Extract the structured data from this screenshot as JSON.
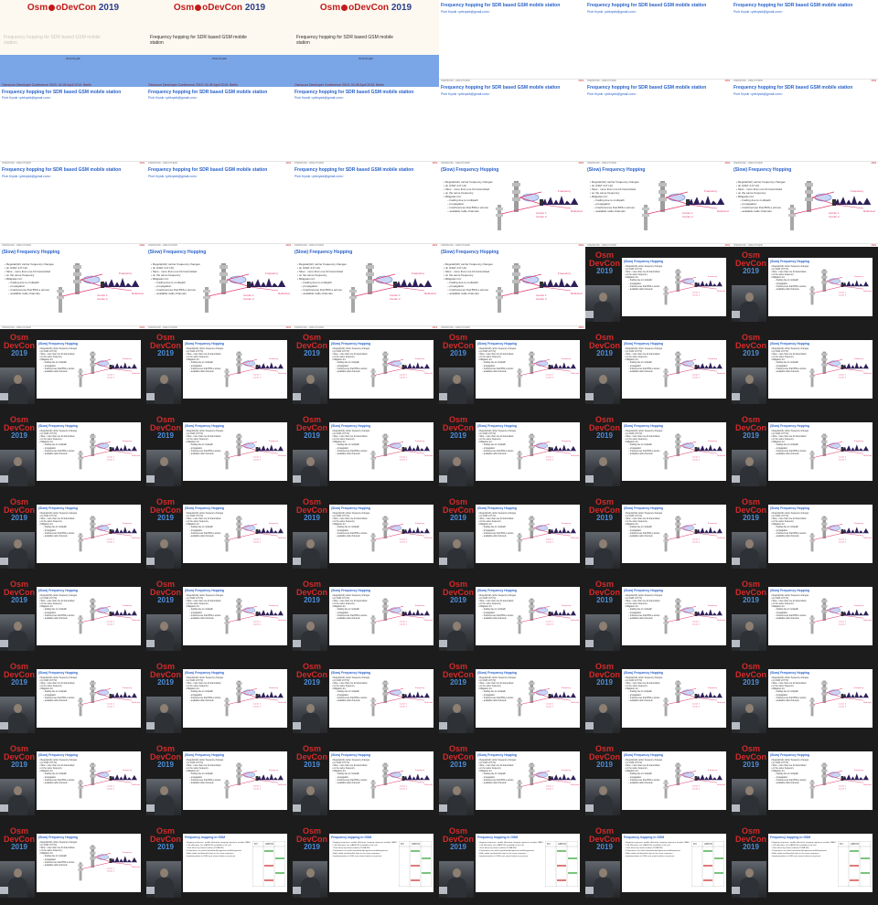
{
  "title_slide": {
    "logo_prefix": "Osm",
    "logo_suffix": "oDevCon",
    "logo_year": "2019",
    "title": "Frequency hopping for SDR based GSM mobile station",
    "faint_text": "Frequency hopping for SDR based GSM mobile station",
    "author": "Piotr Krysik"
  },
  "conference_line": "Osmocon Developer Conference 2019, 04-05 April 2019, Berlin",
  "slide_intro": {
    "title": "Frequency hopping for SDR based GSM mobile station",
    "subtitle": "Piotr Krysik <ptrkrysik@gmail.com>"
  },
  "slide_fh": {
    "title": "(Slow) Frequency Hopping",
    "bullets": [
      {
        "text": "Regular(ish) carrier frequency changes",
        "sub": false
      },
      {
        "text": "(in GSM: 217 Hz)",
        "sub": false
      },
      {
        "text": "Slow - more than one bit transmitted",
        "sub": false
      },
      {
        "text": "on the same frequency",
        "sub": false
      },
      {
        "text": "Mitigation for:",
        "sub": false
      },
      {
        "text": "Fading due to multipath",
        "sub": true
      },
      {
        "text": "propagation",
        "sub": true
      },
      {
        "text": "Interferences that BSS-s across",
        "sub": true
      },
      {
        "text": "available radio channels",
        "sub": true
      }
    ],
    "figure_labels": [
      "Frequency",
      "Carrier 1",
      "Carrier 2",
      "Reflected"
    ]
  },
  "slide_gsm": {
    "title": "Frequency hopping in GSM",
    "bullets": [
      "Hopping sequence: mobile allocation, hopping sequence number, MAIO",
      "Cell allocation: list of ARFCNs available in the cell",
      "Time driven by frame number (TDMA FN)",
      "Parameters sent with Immediate Assignment and Assignment",
      "Both uplink and downlink hop on the same sequence",
      "Implementation in SDR must retune before every burst"
    ],
    "table_header": [
      "FN",
      "ARFCN"
    ]
  },
  "footer": {
    "left": "OSMOCOM - GSM-FH-SDR",
    "right": "2019"
  },
  "video_logo": {
    "line1": "Osm",
    "line2": "DevCon",
    "year": "2019"
  },
  "accent": {
    "blue_title": "#2a62c9",
    "logo_red": "#c21a1a",
    "band_blue": "#7aa5e6",
    "dark_bg": "#1c1c1c"
  },
  "grid": [
    [
      "title_full",
      "title_faint",
      "title_title",
      "intro",
      "intro",
      "intro"
    ],
    [
      "intro_conf",
      "intro_conf",
      "intro_conf",
      "intro",
      "intro",
      "intro"
    ],
    [
      "intro",
      "intro",
      "intro",
      "fh",
      "fh",
      "fh"
    ],
    [
      "fh",
      "fh",
      "fh",
      "fh",
      "video",
      "video"
    ],
    [
      "video",
      "video",
      "video",
      "video",
      "video",
      "video"
    ],
    [
      "video",
      "video",
      "video",
      "video",
      "video",
      "video"
    ],
    [
      "video",
      "video",
      "video",
      "video",
      "video",
      "video"
    ],
    [
      "video",
      "video",
      "video",
      "video",
      "video",
      "video"
    ],
    [
      "video",
      "video",
      "video",
      "video",
      "video",
      "video"
    ],
    [
      "video",
      "video",
      "video",
      "video",
      "video",
      "video"
    ],
    [
      "video",
      "video_gsm",
      "video_gsm",
      "video_gsm",
      "video_gsm",
      "video_gsm"
    ]
  ]
}
